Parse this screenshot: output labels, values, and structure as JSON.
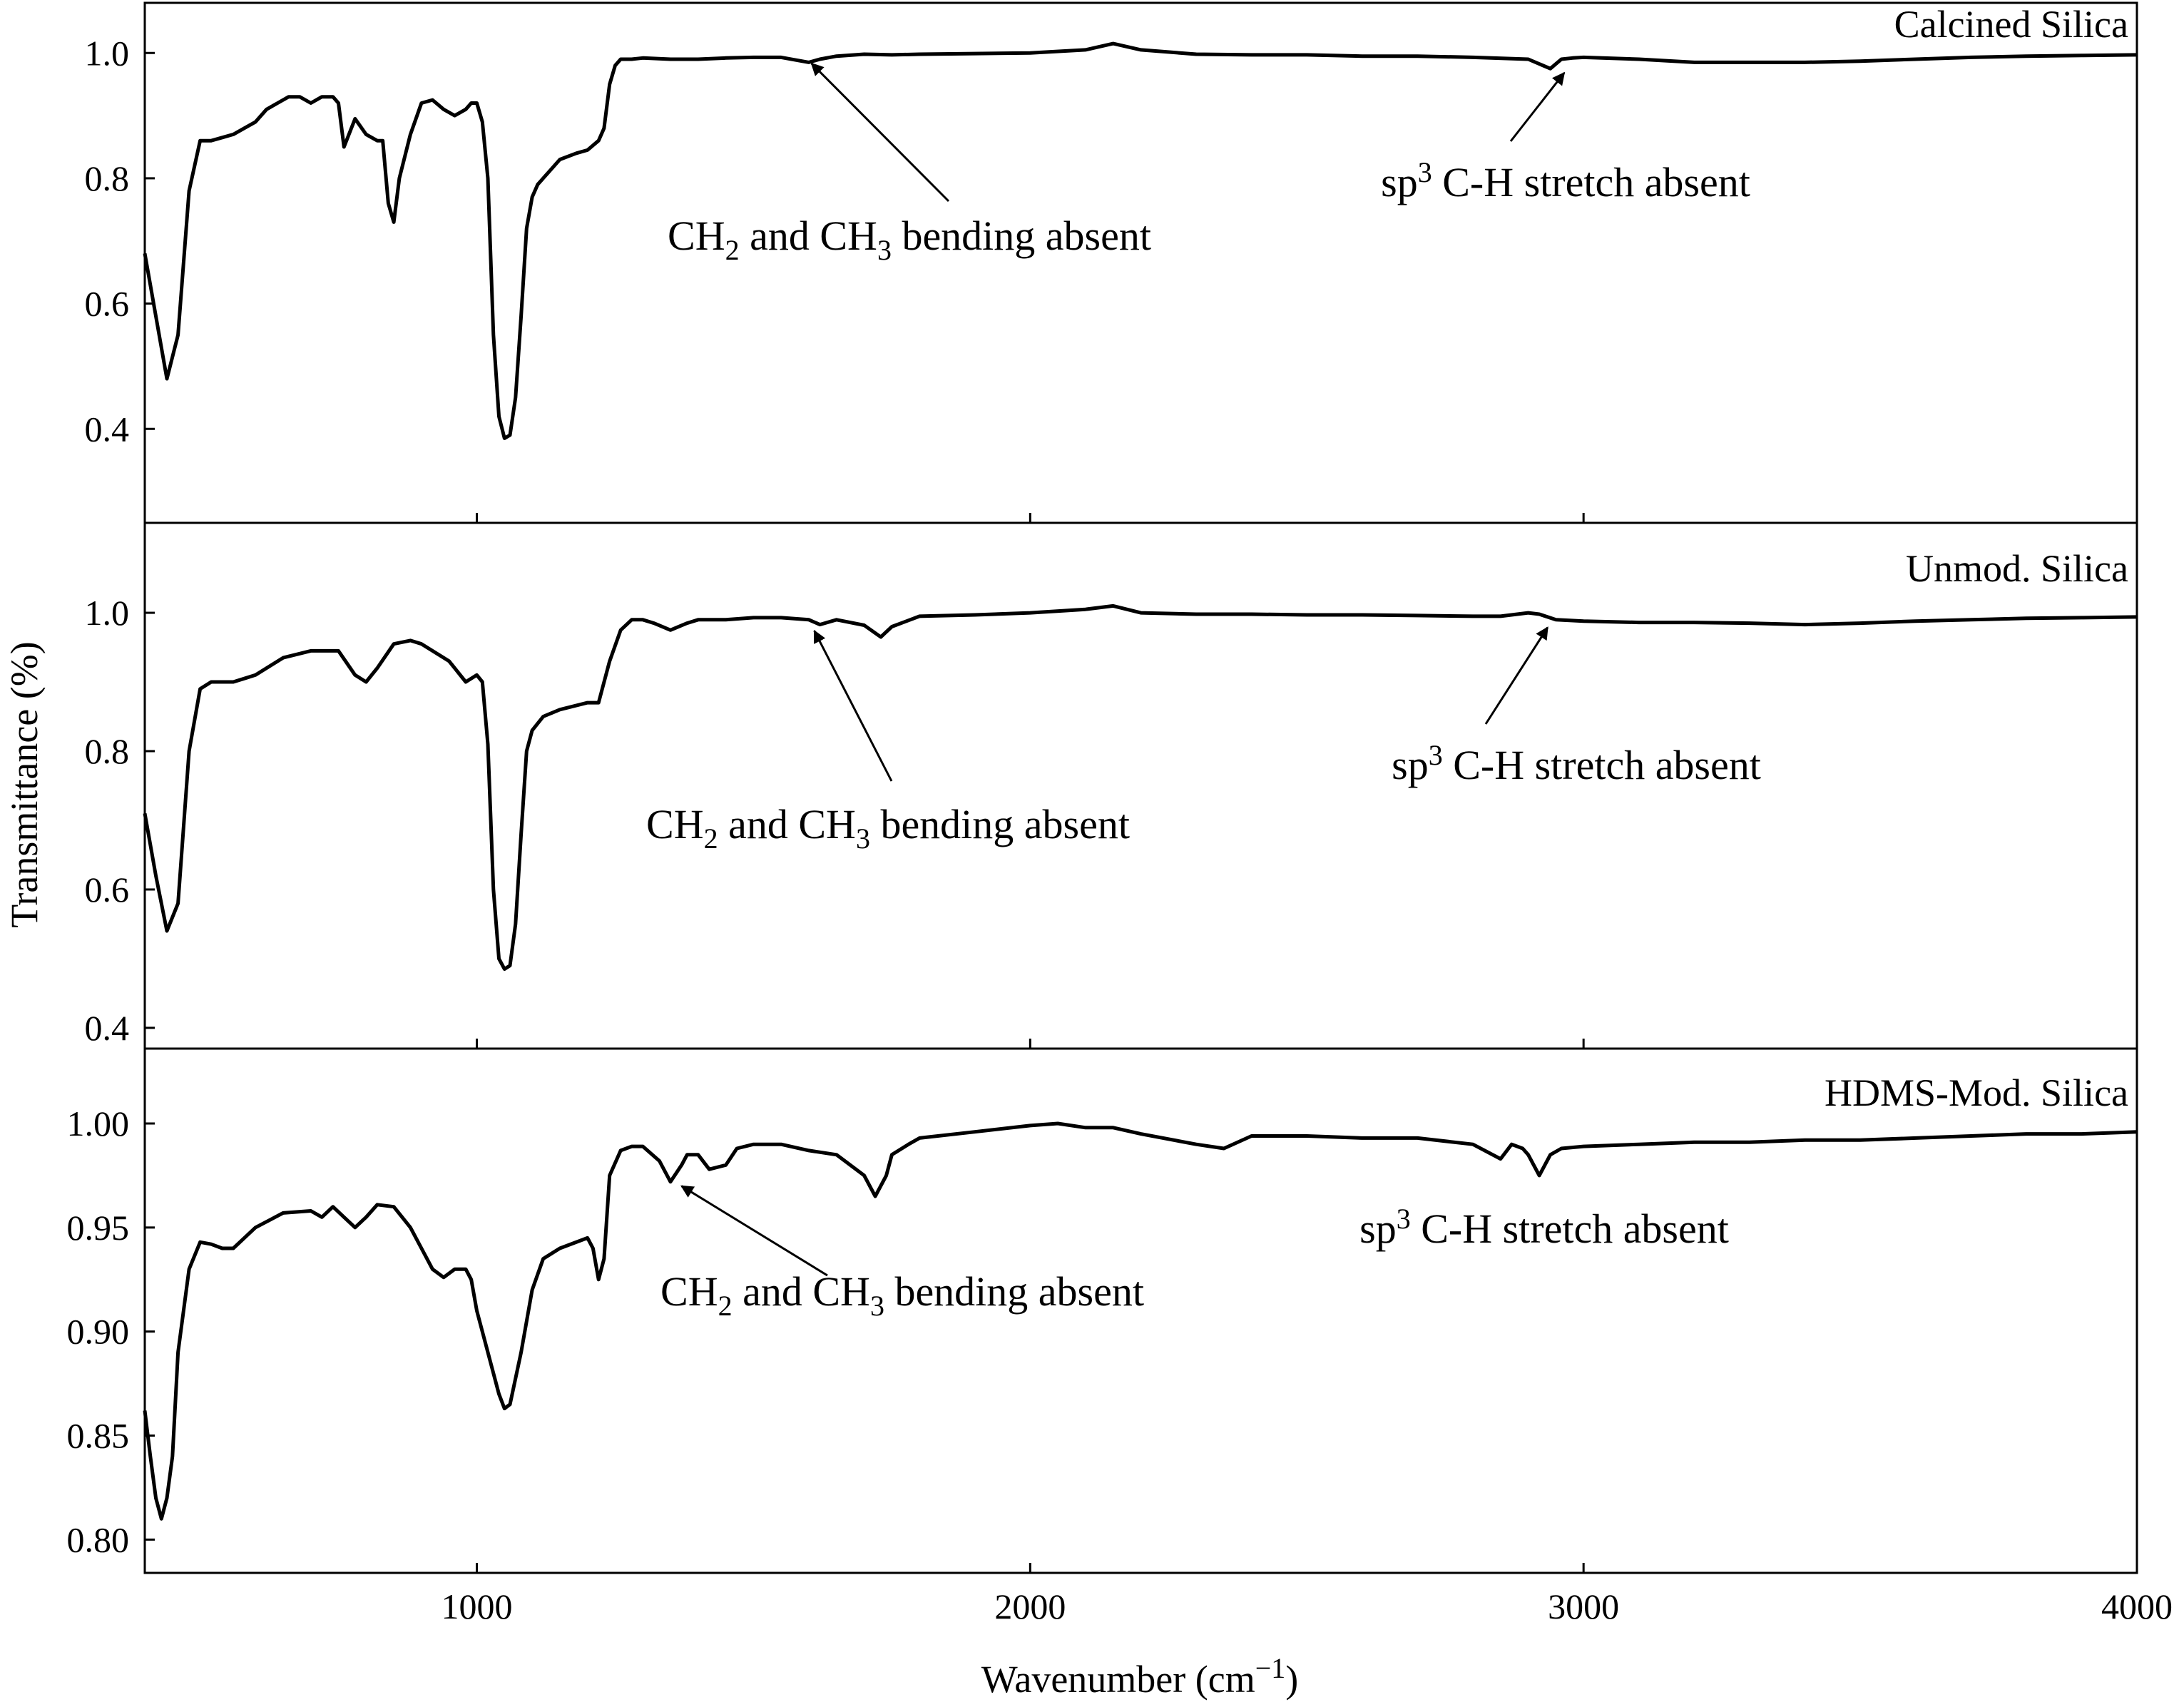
{
  "chart_data": {
    "type": "line",
    "xlabel": "Wavenumber (cm",
    "xlabel_sup": "−1",
    "xlabel_end": ")",
    "ylabel": "Transmittance (%)",
    "xlim": [
      400,
      4000
    ],
    "xticks": [
      1000,
      2000,
      3000,
      4000
    ],
    "grid": false,
    "panels": [
      {
        "title": "Calcined Silica",
        "ylim": [
          0.25,
          1.08
        ],
        "yticks": [
          "0.4",
          "0.6",
          "0.8",
          "1.0"
        ],
        "ytick_values": [
          0.4,
          0.6,
          0.8,
          1.0
        ],
        "series": [
          {
            "x": [
              400,
              420,
              440,
              460,
              480,
              500,
              520,
              540,
              560,
              580,
              600,
              620,
              640,
              660,
              680,
              700,
              720,
              740,
              750,
              760,
              780,
              800,
              820,
              830,
              840,
              850,
              860,
              880,
              900,
              920,
              940,
              960,
              980,
              990,
              1000,
              1010,
              1020,
              1030,
              1040,
              1050,
              1060,
              1070,
              1080,
              1090,
              1100,
              1110,
              1120,
              1130,
              1150,
              1180,
              1200,
              1220,
              1230,
              1240,
              1250,
              1260,
              1280,
              1300,
              1350,
              1400,
              1450,
              1500,
              1550,
              1600,
              1620,
              1650,
              1700,
              1750,
              1800,
              1900,
              2000,
              2100,
              2150,
              2200,
              2300,
              2400,
              2500,
              2600,
              2700,
              2800,
              2900,
              2940,
              2960,
              2980,
              3000,
              3100,
              3200,
              3300,
              3400,
              3500,
              3600,
              3700,
              3800,
              3900,
              4000
            ],
            "y": [
              0.68,
              0.58,
              0.48,
              0.55,
              0.78,
              0.86,
              0.86,
              0.865,
              0.87,
              0.88,
              0.89,
              0.91,
              0.92,
              0.93,
              0.93,
              0.92,
              0.93,
              0.93,
              0.92,
              0.85,
              0.895,
              0.87,
              0.86,
              0.86,
              0.76,
              0.73,
              0.8,
              0.87,
              0.92,
              0.925,
              0.91,
              0.9,
              0.91,
              0.92,
              0.92,
              0.89,
              0.8,
              0.55,
              0.42,
              0.385,
              0.39,
              0.45,
              0.58,
              0.72,
              0.77,
              0.79,
              0.8,
              0.81,
              0.83,
              0.84,
              0.845,
              0.86,
              0.88,
              0.95,
              0.98,
              0.99,
              0.99,
              0.992,
              0.99,
              0.99,
              0.992,
              0.993,
              0.993,
              0.985,
              0.99,
              0.995,
              0.998,
              0.997,
              0.998,
              0.999,
              1.0,
              1.005,
              1.015,
              1.005,
              0.998,
              0.997,
              0.997,
              0.995,
              0.995,
              0.993,
              0.99,
              0.975,
              0.99,
              0.992,
              0.993,
              0.99,
              0.985,
              0.985,
              0.985,
              0.987,
              0.99,
              0.993,
              0.995,
              0.996,
              0.997
            ]
          }
        ],
        "annotations": [
          {
            "pre": "CH",
            "sub1": "2",
            "mid": " and CH",
            "sub2": "3",
            "post": " bending absent",
            "x": 1605,
            "y": 0.99
          },
          {
            "sup_pre": "sp",
            "sup": "3",
            "post": " C-H stretch absent",
            "x": 2965,
            "y": 0.975
          }
        ]
      },
      {
        "title": "Unmod. Silica",
        "ylim": [
          0.37,
          1.13
        ],
        "yticks": [
          "0.4",
          "0.6",
          "0.8",
          "1.0"
        ],
        "ytick_values": [
          0.4,
          0.6,
          0.8,
          1.0
        ],
        "series": [
          {
            "x": [
              400,
              420,
              440,
              460,
              480,
              500,
              520,
              540,
              560,
              580,
              600,
              650,
              700,
              750,
              780,
              800,
              820,
              850,
              880,
              900,
              950,
              980,
              1000,
              1010,
              1020,
              1030,
              1040,
              1050,
              1060,
              1070,
              1080,
              1090,
              1100,
              1120,
              1150,
              1200,
              1220,
              1240,
              1260,
              1280,
              1300,
              1320,
              1350,
              1380,
              1400,
              1450,
              1500,
              1550,
              1600,
              1620,
              1650,
              1700,
              1730,
              1750,
              1800,
              1900,
              2000,
              2100,
              2150,
              2200,
              2300,
              2400,
              2500,
              2600,
              2700,
              2800,
              2850,
              2900,
              2920,
              2950,
              3000,
              3100,
              3200,
              3300,
              3400,
              3500,
              3600,
              3700,
              3800,
              3900,
              4000
            ],
            "y": [
              0.71,
              0.62,
              0.54,
              0.58,
              0.8,
              0.89,
              0.9,
              0.9,
              0.9,
              0.905,
              0.91,
              0.935,
              0.945,
              0.945,
              0.91,
              0.9,
              0.92,
              0.955,
              0.96,
              0.955,
              0.93,
              0.9,
              0.91,
              0.9,
              0.81,
              0.6,
              0.5,
              0.485,
              0.49,
              0.55,
              0.68,
              0.8,
              0.83,
              0.85,
              0.86,
              0.87,
              0.87,
              0.93,
              0.975,
              0.99,
              0.99,
              0.985,
              0.975,
              0.985,
              0.99,
              0.99,
              0.993,
              0.993,
              0.99,
              0.983,
              0.99,
              0.982,
              0.965,
              0.98,
              0.995,
              0.997,
              1.0,
              1.005,
              1.01,
              1.0,
              0.998,
              0.998,
              0.997,
              0.997,
              0.996,
              0.995,
              0.995,
              1.0,
              0.998,
              0.99,
              0.988,
              0.986,
              0.986,
              0.985,
              0.983,
              0.985,
              0.988,
              0.99,
              0.992,
              0.993,
              0.994
            ]
          }
        ],
        "annotations": [
          {
            "pre": "CH",
            "sub1": "2",
            "mid": " and CH",
            "sub2": "3",
            "post": " bending absent",
            "x": 1610,
            "y": 0.98
          },
          {
            "sup_pre": "sp",
            "sup": "3",
            "post": " C-H stretch absent",
            "x": 2935,
            "y": 0.985
          }
        ]
      },
      {
        "title": "HDMS-Mod. Silica",
        "ylim": [
          0.784,
          1.036
        ],
        "yticks": [
          "0.80",
          "0.85",
          "0.90",
          "0.95",
          "1.00"
        ],
        "ytick_values": [
          0.8,
          0.85,
          0.9,
          0.95,
          1.0
        ],
        "series": [
          {
            "x": [
              400,
              410,
              420,
              430,
              440,
              450,
              460,
              480,
              500,
              520,
              540,
              560,
              580,
              600,
              650,
              700,
              720,
              740,
              760,
              780,
              800,
              820,
              850,
              880,
              900,
              920,
              940,
              960,
              980,
              990,
              1000,
              1020,
              1040,
              1050,
              1060,
              1080,
              1100,
              1120,
              1150,
              1200,
              1210,
              1220,
              1230,
              1240,
              1260,
              1280,
              1300,
              1330,
              1350,
              1370,
              1380,
              1400,
              1420,
              1450,
              1470,
              1500,
              1550,
              1600,
              1650,
              1700,
              1720,
              1740,
              1750,
              1780,
              1800,
              1900,
              2000,
              2050,
              2100,
              2150,
              2200,
              2300,
              2350,
              2400,
              2500,
              2600,
              2700,
              2800,
              2850,
              2870,
              2890,
              2900,
              2920,
              2940,
              2960,
              3000,
              3100,
              3200,
              3300,
              3400,
              3500,
              3600,
              3700,
              3800,
              3900,
              4000
            ],
            "y": [
              0.862,
              0.84,
              0.82,
              0.81,
              0.82,
              0.84,
              0.89,
              0.93,
              0.943,
              0.942,
              0.94,
              0.94,
              0.945,
              0.95,
              0.957,
              0.958,
              0.955,
              0.96,
              0.955,
              0.95,
              0.955,
              0.961,
              0.96,
              0.95,
              0.94,
              0.93,
              0.926,
              0.93,
              0.93,
              0.925,
              0.91,
              0.89,
              0.87,
              0.863,
              0.865,
              0.89,
              0.92,
              0.935,
              0.94,
              0.945,
              0.94,
              0.925,
              0.935,
              0.975,
              0.987,
              0.989,
              0.989,
              0.982,
              0.972,
              0.98,
              0.985,
              0.985,
              0.978,
              0.98,
              0.988,
              0.99,
              0.99,
              0.987,
              0.985,
              0.975,
              0.965,
              0.975,
              0.985,
              0.99,
              0.993,
              0.996,
              0.999,
              1.0,
              0.998,
              0.998,
              0.995,
              0.99,
              0.988,
              0.994,
              0.994,
              0.993,
              0.993,
              0.99,
              0.983,
              0.99,
              0.988,
              0.985,
              0.975,
              0.985,
              0.988,
              0.989,
              0.99,
              0.991,
              0.991,
              0.992,
              0.992,
              0.993,
              0.994,
              0.995,
              0.995,
              0.996
            ]
          }
        ],
        "annotations": [
          {
            "pre": "CH",
            "sub1": "2",
            "mid": " and CH",
            "sub2": "3",
            "post": " bending absent",
            "x": 1370,
            "y": 0.972
          },
          {
            "sup_pre": "sp",
            "sup": "3",
            "post": " C-H stretch absent"
          }
        ]
      }
    ]
  }
}
